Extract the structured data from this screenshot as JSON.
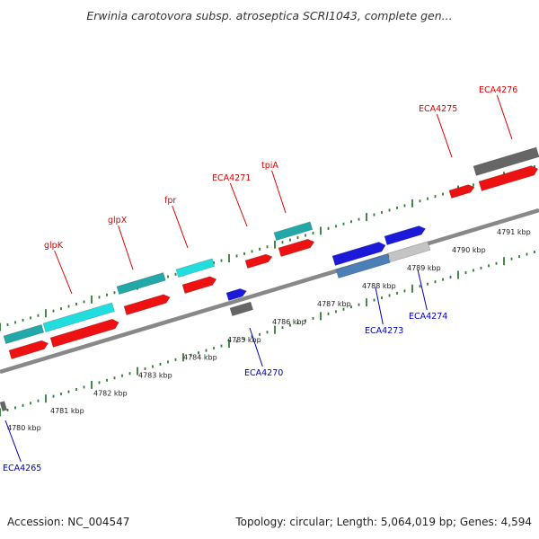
{
  "title": "Erwinia carotovora subsp. atroseptica SCRI1043, complete gen...",
  "footer": {
    "accession": "Accession: NC_004547",
    "summary": "Topology: circular; Length: 5,064,019 bp; Genes: 4,594"
  },
  "colors": {
    "plus_label": "#dd0000",
    "minus_label": "#0000bb",
    "backbone": "#888888",
    "tick": "#2e7d32",
    "cds_red": "#ee1111",
    "cyan": "#22dddd",
    "teal": "#22a8a8",
    "blue": "#1a1ad8",
    "steel": "#4a7fb8",
    "gray": "#666666",
    "lightgray": "#c4c4c4"
  },
  "scale_labels": [
    "4780 kbp",
    "4781 kbp",
    "4782 kbp",
    "4783 kbp",
    "4784 kbp",
    "4785 kbp",
    "4786 kbp",
    "4787 kbp",
    "4788 kbp",
    "4789 kbp",
    "4790 kbp",
    "4791 kbp"
  ],
  "plus_labels": [
    {
      "text": "glpK"
    },
    {
      "text": "glpX"
    },
    {
      "text": "fpr"
    },
    {
      "text": "ECA4271"
    },
    {
      "text": "tpiA"
    },
    {
      "text": "ECA4275"
    },
    {
      "text": "ECA4276"
    }
  ],
  "minus_labels": [
    {
      "text": "ECA4265"
    },
    {
      "text": "ECA4270"
    },
    {
      "text": "ECA4273"
    },
    {
      "text": "ECA4274"
    }
  ]
}
